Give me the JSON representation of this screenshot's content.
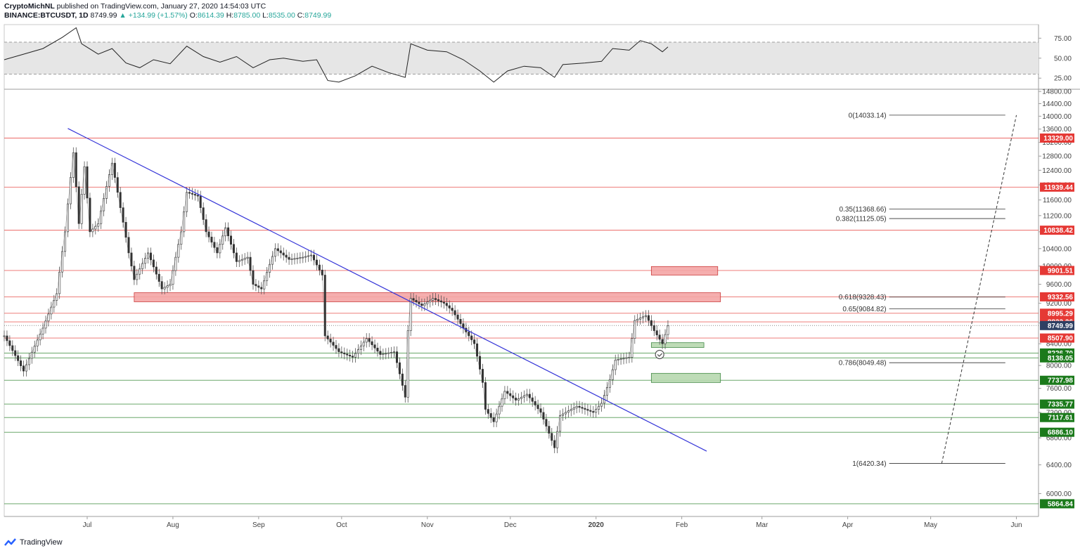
{
  "header": {
    "author": "CryptoMichNL",
    "published": "published on TradingView.com, January 27, 2020 14:54:03 UTC",
    "symbol": "BINANCE:BTCUSDT, 1D",
    "last": "8749.99",
    "change_arrow": "▲",
    "change": "+134.99 (+1.57%)",
    "o_label": "O:",
    "o": "8614.39",
    "h_label": "H:",
    "h": "8785.00",
    "l_label": "L:",
    "l": "8535.00",
    "c_label": "C:",
    "c": "8749.99"
  },
  "watermark": {
    "text": "TradingView",
    "icon": "tradingview-logo-icon"
  },
  "colors": {
    "support": "#1b7a1b",
    "resistance": "#e53935",
    "trendline": "#3535d8",
    "zone_red": "#f4a6a6",
    "zone_green": "#b7d9b0",
    "last_price": "#2e4063"
  },
  "chart_data": {
    "type": "candlestick",
    "title": "",
    "instrument": "BINANCE:BTCUSDT",
    "interval": "1D",
    "ylim": [
      5700,
      14850
    ],
    "y_scale": "log",
    "x_range": [
      "2019-06-01",
      "2020-06-09"
    ],
    "x_ticks": [
      {
        "label": "Jul",
        "date": "2019-07-01"
      },
      {
        "label": "Aug",
        "date": "2019-08-01"
      },
      {
        "label": "Sep",
        "date": "2019-09-01"
      },
      {
        "label": "Oct",
        "date": "2019-10-01"
      },
      {
        "label": "Nov",
        "date": "2019-11-01"
      },
      {
        "label": "Dec",
        "date": "2019-12-01"
      },
      {
        "label": "2020",
        "date": "2020-01-01"
      },
      {
        "label": "Feb",
        "date": "2020-02-01"
      },
      {
        "label": "Mar",
        "date": "2020-03-01"
      },
      {
        "label": "Apr",
        "date": "2020-04-01"
      },
      {
        "label": "May",
        "date": "2020-05-01"
      },
      {
        "label": "Jun",
        "date": "2020-06-01"
      }
    ],
    "y_ticks": [
      "14800.00",
      "14400.00",
      "14000.00",
      "13600.00",
      "13200.00",
      "12800.00",
      "12400.00",
      "12000.00",
      "11600.00",
      "11200.00",
      "10800.00",
      "10400.00",
      "10000.00",
      "9600.00",
      "9200.00",
      "8800.00",
      "8400.00",
      "8000.00",
      "7600.00",
      "7200.00",
      "6800.00",
      "6400.00",
      "6000.00"
    ],
    "price_path": [
      [
        "2019-06-01",
        8550
      ],
      [
        "2019-06-08",
        7900
      ],
      [
        "2019-06-15",
        8700
      ],
      [
        "2019-06-20",
        9400
      ],
      [
        "2019-06-23",
        10800
      ],
      [
        "2019-06-26",
        12900
      ],
      [
        "2019-06-28",
        11000
      ],
      [
        "2019-06-30",
        12500
      ],
      [
        "2019-07-02",
        10800
      ],
      [
        "2019-07-05",
        11000
      ],
      [
        "2019-07-10",
        12600
      ],
      [
        "2019-07-13",
        11400
      ],
      [
        "2019-07-16",
        10300
      ],
      [
        "2019-07-18",
        9700
      ],
      [
        "2019-07-23",
        10300
      ],
      [
        "2019-07-28",
        9500
      ],
      [
        "2019-07-31",
        9600
      ],
      [
        "2019-08-04",
        10800
      ],
      [
        "2019-08-06",
        11800
      ],
      [
        "2019-08-10",
        11700
      ],
      [
        "2019-08-13",
        10800
      ],
      [
        "2019-08-17",
        10300
      ],
      [
        "2019-08-20",
        10900
      ],
      [
        "2019-08-24",
        10100
      ],
      [
        "2019-08-28",
        10200
      ],
      [
        "2019-08-30",
        9600
      ],
      [
        "2019-09-02",
        9500
      ],
      [
        "2019-09-07",
        10400
      ],
      [
        "2019-09-12",
        10150
      ],
      [
        "2019-09-17",
        10200
      ],
      [
        "2019-09-20",
        10250
      ],
      [
        "2019-09-24",
        9800
      ],
      [
        "2019-09-25",
        8550
      ],
      [
        "2019-09-30",
        8250
      ],
      [
        "2019-10-05",
        8150
      ],
      [
        "2019-10-10",
        8500
      ],
      [
        "2019-10-15",
        8200
      ],
      [
        "2019-10-20",
        8250
      ],
      [
        "2019-10-24",
        7450
      ],
      [
        "2019-10-25",
        8650
      ],
      [
        "2019-10-26",
        9300
      ],
      [
        "2019-10-30",
        9150
      ],
      [
        "2019-11-03",
        9300
      ],
      [
        "2019-11-07",
        9200
      ],
      [
        "2019-11-10",
        9050
      ],
      [
        "2019-11-14",
        8700
      ],
      [
        "2019-11-18",
        8400
      ],
      [
        "2019-11-21",
        7700
      ],
      [
        "2019-11-22",
        7250
      ],
      [
        "2019-11-25",
        7050
      ],
      [
        "2019-11-29",
        7550
      ],
      [
        "2019-12-03",
        7400
      ],
      [
        "2019-12-07",
        7500
      ],
      [
        "2019-12-12",
        7200
      ],
      [
        "2019-12-17",
        6650
      ],
      [
        "2019-12-19",
        7150
      ],
      [
        "2019-12-25",
        7300
      ],
      [
        "2019-12-31",
        7200
      ],
      [
        "2020-01-03",
        7350
      ],
      [
        "2020-01-06",
        7750
      ],
      [
        "2020-01-08",
        8100
      ],
      [
        "2020-01-13",
        8150
      ],
      [
        "2020-01-15",
        8850
      ],
      [
        "2020-01-19",
        8950
      ],
      [
        "2020-01-22",
        8650
      ],
      [
        "2020-01-25",
        8400
      ],
      [
        "2020-01-27",
        8749.99
      ]
    ],
    "last_price": 8749.99,
    "resistance_levels": [
      13329.0,
      11939.44,
      10838.42,
      9901.51,
      9332.56,
      8995.29,
      8822.26,
      8507.9
    ],
    "support_levels": [
      8226.7,
      8138.05,
      7737.98,
      7335.77,
      7117.61,
      6886.1,
      5864.84
    ],
    "price_labels": [
      {
        "text": "13329.00",
        "value": 13329.0,
        "kind": "resistance"
      },
      {
        "text": "11939.44",
        "value": 11939.44,
        "kind": "resistance"
      },
      {
        "text": "10838.42",
        "value": 10838.42,
        "kind": "resistance"
      },
      {
        "text": "9901.51",
        "value": 9901.51,
        "kind": "resistance"
      },
      {
        "text": "9332.56",
        "value": 9332.56,
        "kind": "resistance"
      },
      {
        "text": "8995.29",
        "value": 8995.29,
        "kind": "resistance"
      },
      {
        "text": "8822.26",
        "value": 8822.26,
        "kind": "resistance"
      },
      {
        "text": "8749.99",
        "value": 8749.99,
        "kind": "last"
      },
      {
        "text": "8507.90",
        "value": 8507.9,
        "kind": "resistance"
      },
      {
        "text": "8226.70",
        "value": 8226.7,
        "kind": "support"
      },
      {
        "text": "8138.05",
        "value": 8138.05,
        "kind": "support"
      },
      {
        "text": "7737.98",
        "value": 7737.98,
        "kind": "support"
      },
      {
        "text": "7335.77",
        "value": 7335.77,
        "kind": "support"
      },
      {
        "text": "7117.61",
        "value": 7117.61,
        "kind": "support"
      },
      {
        "text": "6886.10",
        "value": 6886.1,
        "kind": "support"
      },
      {
        "text": "5864.84",
        "value": 5864.84,
        "kind": "support"
      }
    ],
    "fibonacci": [
      {
        "label": "0(14033.14)",
        "value": 14033.14
      },
      {
        "label": "0.35(11368.66)",
        "value": 11368.66
      },
      {
        "label": "0.382(11125.05)",
        "value": 11125.05
      },
      {
        "label": "0.618(9328.43)",
        "value": 9328.43
      },
      {
        "label": "0.65(9084.82)",
        "value": 9084.82
      },
      {
        "label": "0.786(8049.48)",
        "value": 8049.48
      },
      {
        "label": "1(6420.34)",
        "value": 6420.34
      }
    ],
    "fib_line_from": [
      "2020-05-05",
      6420.34
    ],
    "fib_line_to": [
      "2020-06-01",
      14033.14
    ],
    "trendline": {
      "from": [
        "2019-06-24",
        13620
      ],
      "to": [
        "2020-02-10",
        6600
      ]
    },
    "zones": [
      {
        "kind": "red",
        "from": "2019-07-18",
        "to": "2020-02-15",
        "low": 9230,
        "high": 9420
      },
      {
        "kind": "red",
        "from": "2020-01-21",
        "to": "2020-02-14",
        "low": 9800,
        "high": 9990
      },
      {
        "kind": "green",
        "from": "2020-01-21",
        "to": "2020-02-09",
        "low": 8330,
        "high": 8420
      },
      {
        "kind": "green",
        "from": "2020-01-21",
        "to": "2020-02-15",
        "low": 7700,
        "high": 7860
      }
    ],
    "rsi": {
      "ylim": [
        12,
        92
      ],
      "y_ticks": [
        "75.00",
        "50.00",
        "25.00"
      ],
      "band": [
        30,
        70
      ],
      "values": [
        [
          "2019-06-01",
          48
        ],
        [
          "2019-06-08",
          55
        ],
        [
          "2019-06-15",
          62
        ],
        [
          "2019-06-22",
          76
        ],
        [
          "2019-06-27",
          88
        ],
        [
          "2019-06-29",
          68
        ],
        [
          "2019-07-05",
          55
        ],
        [
          "2019-07-10",
          62
        ],
        [
          "2019-07-15",
          44
        ],
        [
          "2019-07-20",
          38
        ],
        [
          "2019-07-25",
          48
        ],
        [
          "2019-07-31",
          43
        ],
        [
          "2019-08-06",
          65
        ],
        [
          "2019-08-12",
          52
        ],
        [
          "2019-08-18",
          45
        ],
        [
          "2019-08-24",
          52
        ],
        [
          "2019-08-30",
          38
        ],
        [
          "2019-09-05",
          48
        ],
        [
          "2019-09-10",
          50
        ],
        [
          "2019-09-17",
          46
        ],
        [
          "2019-09-22",
          48
        ],
        [
          "2019-09-26",
          22
        ],
        [
          "2019-09-30",
          20
        ],
        [
          "2019-10-06",
          28
        ],
        [
          "2019-10-12",
          40
        ],
        [
          "2019-10-18",
          32
        ],
        [
          "2019-10-24",
          26
        ],
        [
          "2019-10-26",
          68
        ],
        [
          "2019-11-01",
          60
        ],
        [
          "2019-11-08",
          58
        ],
        [
          "2019-11-14",
          48
        ],
        [
          "2019-11-20",
          34
        ],
        [
          "2019-11-25",
          20
        ],
        [
          "2019-11-30",
          34
        ],
        [
          "2019-12-06",
          40
        ],
        [
          "2019-12-12",
          38
        ],
        [
          "2019-12-17",
          26
        ],
        [
          "2019-12-20",
          42
        ],
        [
          "2019-12-28",
          44
        ],
        [
          "2020-01-03",
          46
        ],
        [
          "2020-01-07",
          62
        ],
        [
          "2020-01-13",
          60
        ],
        [
          "2020-01-17",
          72
        ],
        [
          "2020-01-21",
          68
        ],
        [
          "2020-01-25",
          58
        ],
        [
          "2020-01-27",
          64
        ]
      ]
    }
  }
}
